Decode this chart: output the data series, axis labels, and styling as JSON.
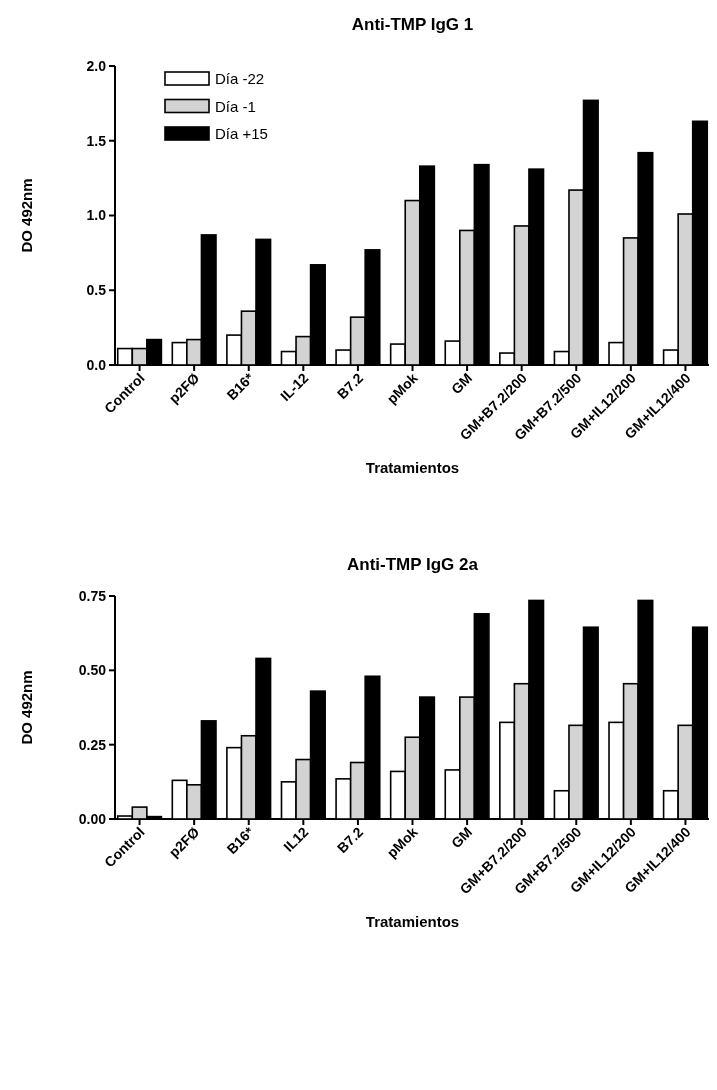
{
  "chart_data": [
    {
      "type": "bar",
      "title": "Anti-TMP IgG 1",
      "xlabel": "Tratamientos",
      "ylabel": "DO 492nm",
      "categories": [
        "Control",
        "p2FØ",
        "B16*",
        "IL-12",
        "B7.2",
        "pMok",
        "GM",
        "GM+B7.2/200",
        "GM+B7.2/500",
        "GM+IL12/200",
        "GM+IL12/400"
      ],
      "series": [
        {
          "name": "Día -22",
          "color": "#ffffff",
          "values": [
            0.11,
            0.15,
            0.2,
            0.09,
            0.1,
            0.14,
            0.16,
            0.08,
            0.09,
            0.15,
            0.1
          ]
        },
        {
          "name": "Día -1",
          "color": "#d3d3d3",
          "values": [
            0.11,
            0.17,
            0.36,
            0.19,
            0.32,
            1.1,
            0.9,
            0.93,
            1.17,
            0.85,
            1.01
          ]
        },
        {
          "name": "Día +15",
          "color": "#000000",
          "values": [
            0.17,
            0.87,
            0.84,
            0.67,
            0.77,
            1.33,
            1.34,
            1.31,
            1.77,
            1.42,
            1.63
          ]
        }
      ],
      "ylim": [
        0,
        2
      ],
      "yticks": [
        {
          "value": 0,
          "label": "0.0"
        },
        {
          "value": 0.5,
          "label": "0.5"
        },
        {
          "value": 1,
          "label": "1.0"
        },
        {
          "value": 1.5,
          "label": "1.5"
        },
        {
          "value": 2,
          "label": "2.0"
        }
      ],
      "grid": false,
      "legend": "top left"
    },
    {
      "type": "bar",
      "title": "Anti-TMP IgG 2a",
      "xlabel": "Tratamientos",
      "ylabel": "DO 492nm",
      "categories": [
        "Control",
        "p2FØ",
        "B16*",
        "IL12",
        "B7.2",
        "pMok",
        "GM",
        "GM+B7.2/200",
        "GM+B7.2/500",
        "GM+IL12/200",
        "GM+IL12/400"
      ],
      "series": [
        {
          "color": "#ffffff",
          "values": [
            0.01,
            0.13,
            0.24,
            0.125,
            0.135,
            0.16,
            0.165,
            0.325,
            0.095,
            0.325,
            0.095
          ]
        },
        {
          "color": "#d3d3d3",
          "values": [
            0.04,
            0.115,
            0.28,
            0.2,
            0.19,
            0.275,
            0.41,
            0.455,
            0.315,
            0.455,
            0.315
          ]
        },
        {
          "color": "#000000",
          "values": [
            0.008,
            0.33,
            0.54,
            0.43,
            0.48,
            0.41,
            0.69,
            0.735,
            0.645,
            0.735,
            0.645
          ]
        }
      ],
      "ylim": [
        0,
        0.75
      ],
      "yticks": [
        {
          "value": 0,
          "label": "0.00"
        },
        {
          "value": 0.25,
          "label": "0.25"
        },
        {
          "value": 0.5,
          "label": "0.50"
        },
        {
          "value": 0.75,
          "label": "0.75"
        }
      ],
      "grid": false
    }
  ]
}
